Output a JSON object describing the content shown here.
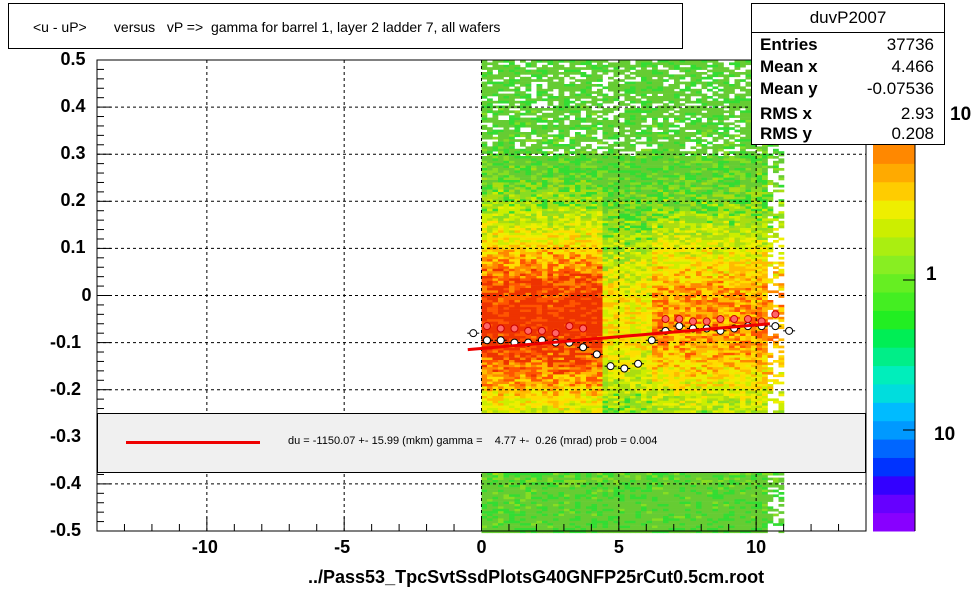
{
  "title": "<u - uP>       versus   vP =>  gamma for barrel 1, layer 2 ladder 7, all wafers",
  "stats": {
    "name": "duvP2007",
    "rows": [
      {
        "key": "Entries",
        "value": "37736"
      },
      {
        "key": "Mean x",
        "value": "4.466"
      },
      {
        "key": "Mean y",
        "value": "-0.07536"
      },
      {
        "key": "RMS x",
        "value": "2.93"
      },
      {
        "key": "RMS y",
        "value": "0.208"
      }
    ]
  },
  "fit_label": "du = -1150.07 +- 15.99 (mkm) gamma =    4.77 +-  0.26 (mrad) prob = 0.004",
  "footer": "../Pass53_TpcSvtSsdPlotsG40GNFP25rCut0.5cm.root",
  "palette_labels": [
    "10",
    "1",
    "10"
  ],
  "colors": {
    "fit": "#ee0000",
    "background": "#ffffff",
    "legend_bg": "#f0f0f0"
  },
  "chart_data": {
    "type": "heatmap",
    "xlim": [
      -14,
      14
    ],
    "ylim": [
      -0.5,
      0.5
    ],
    "x_ticks": [
      -10,
      -5,
      0,
      5,
      10
    ],
    "y_ticks": [
      0.5,
      0.4,
      0.3,
      0.2,
      0.1,
      0,
      -0.1,
      -0.2,
      -0.3,
      -0.4,
      -0.5
    ],
    "x_tick_labels": [
      "-10",
      "-5",
      "0",
      "5",
      "10"
    ],
    "y_tick_labels": [
      "0.5",
      "0.4",
      "0.3",
      "0.2",
      "0.1",
      "0",
      "-0.1",
      "-0.2",
      "-0.3",
      "-0.4",
      "-0.5"
    ],
    "grid": true,
    "heat_x_range": [
      0,
      11
    ],
    "profile_black": [
      {
        "x": -0.3,
        "y": -0.08
      },
      {
        "x": 0.2,
        "y": -0.095
      },
      {
        "x": 0.7,
        "y": -0.095
      },
      {
        "x": 1.2,
        "y": -0.1
      },
      {
        "x": 1.7,
        "y": -0.1
      },
      {
        "x": 2.2,
        "y": -0.095
      },
      {
        "x": 2.7,
        "y": -0.1
      },
      {
        "x": 3.2,
        "y": -0.1
      },
      {
        "x": 3.7,
        "y": -0.11
      },
      {
        "x": 4.2,
        "y": -0.125
      },
      {
        "x": 4.7,
        "y": -0.15
      },
      {
        "x": 5.2,
        "y": -0.155
      },
      {
        "x": 5.7,
        "y": -0.145
      },
      {
        "x": 6.2,
        "y": -0.095
      },
      {
        "x": 6.7,
        "y": -0.075
      },
      {
        "x": 7.2,
        "y": -0.065
      },
      {
        "x": 7.7,
        "y": -0.07
      },
      {
        "x": 8.2,
        "y": -0.07
      },
      {
        "x": 8.7,
        "y": -0.075
      },
      {
        "x": 9.2,
        "y": -0.07
      },
      {
        "x": 9.7,
        "y": -0.065
      },
      {
        "x": 10.2,
        "y": -0.065
      },
      {
        "x": 10.7,
        "y": -0.065
      },
      {
        "x": 11.2,
        "y": -0.075
      }
    ],
    "profile_red": [
      {
        "x": 0.2,
        "y": -0.065
      },
      {
        "x": 0.7,
        "y": -0.07
      },
      {
        "x": 1.2,
        "y": -0.07
      },
      {
        "x": 1.7,
        "y": -0.075
      },
      {
        "x": 2.2,
        "y": -0.075
      },
      {
        "x": 2.7,
        "y": -0.08
      },
      {
        "x": 3.2,
        "y": -0.065
      },
      {
        "x": 3.7,
        "y": -0.07
      },
      {
        "x": 6.7,
        "y": -0.05
      },
      {
        "x": 7.2,
        "y": -0.05
      },
      {
        "x": 7.7,
        "y": -0.055
      },
      {
        "x": 8.2,
        "y": -0.055
      },
      {
        "x": 8.7,
        "y": -0.05
      },
      {
        "x": 9.2,
        "y": -0.05
      },
      {
        "x": 9.7,
        "y": -0.05
      },
      {
        "x": 10.2,
        "y": -0.055
      },
      {
        "x": 10.7,
        "y": -0.04
      }
    ],
    "fit_line": {
      "x": [
        -0.5,
        10.5
      ],
      "y": [
        -0.115,
        -0.06
      ]
    }
  }
}
